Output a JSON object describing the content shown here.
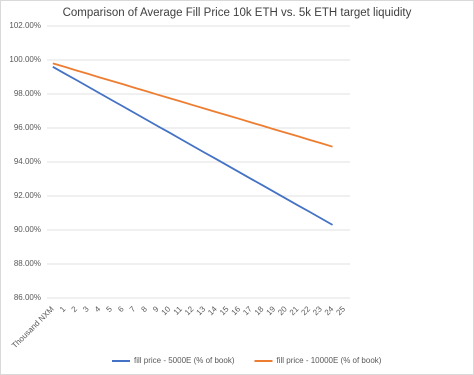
{
  "chart_data": {
    "type": "line",
    "title": "Comparison of Average Fill Price 10k ETH vs. 5k ETH target liquidity",
    "categories": [
      "Thousand NXM",
      "1",
      "2",
      "3",
      "4",
      "5",
      "6",
      "7",
      "8",
      "9",
      "10",
      "11",
      "12",
      "13",
      "14",
      "15",
      "16",
      "17",
      "18",
      "19",
      "20",
      "21",
      "22",
      "23",
      "24",
      "25"
    ],
    "series": [
      {
        "name": "fill price - 5000E (% of book)",
        "color": "#4472c4",
        "values": [
          99.6,
          99.21,
          98.83,
          98.44,
          98.05,
          97.66,
          97.28,
          96.89,
          96.5,
          96.11,
          95.73,
          95.34,
          94.95,
          94.56,
          94.18,
          93.79,
          93.4,
          93.01,
          92.63,
          92.24,
          91.85,
          91.46,
          91.08,
          90.69,
          90.3,
          null
        ]
      },
      {
        "name": "fill price - 10000E (% of book)",
        "color": "#ed7d31",
        "values": [
          99.8,
          99.6,
          99.39,
          99.19,
          98.98,
          98.78,
          98.58,
          98.37,
          98.17,
          97.96,
          97.76,
          97.56,
          97.35,
          97.15,
          96.94,
          96.74,
          96.54,
          96.33,
          96.13,
          95.92,
          95.72,
          95.52,
          95.31,
          95.11,
          94.9,
          null
        ]
      }
    ],
    "ylim": [
      86,
      102
    ],
    "yticks": [
      {
        "value": 86,
        "label": "86.00%"
      },
      {
        "value": 88,
        "label": "88.00%"
      },
      {
        "value": 90,
        "label": "90.00%"
      },
      {
        "value": 92,
        "label": "92.00%"
      },
      {
        "value": 94,
        "label": "94.00%"
      },
      {
        "value": 96,
        "label": "96.00%"
      },
      {
        "value": 98,
        "label": "98.00%"
      },
      {
        "value": 100,
        "label": "100.00%"
      },
      {
        "value": 102,
        "label": "102.00%"
      }
    ],
    "grid": true,
    "legend": "bottom"
  }
}
